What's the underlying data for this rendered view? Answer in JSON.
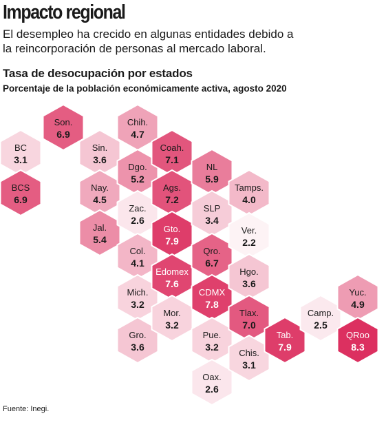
{
  "headline": "Impacto regional",
  "lede": "El desempleo ha crecido en algunas entidades debido a la reincorporación de personas al mercado laboral.",
  "source": "Fuente: Inegi.",
  "chart_data": {
    "type": "heatmap",
    "title": "Tasa de desocupación por estados",
    "subtitle": "Porcentaje de la población económicamente activa, agosto 2020",
    "colors": {
      "low": "#ffffff",
      "high": "#dc3060",
      "stroke": "#ffffff",
      "dark_text": "#1a1a1a",
      "light_text": "#ffffff"
    },
    "states": [
      {
        "label": "BC",
        "value": 3.1
      },
      {
        "label": "Son.",
        "value": 6.9
      },
      {
        "label": "BCS",
        "value": 6.9
      },
      {
        "label": "Sin.",
        "value": 3.6
      },
      {
        "label": "Chih.",
        "value": 4.7
      },
      {
        "label": "Nay.",
        "value": 4.5
      },
      {
        "label": "Dgo.",
        "value": 5.2
      },
      {
        "label": "Coah.",
        "value": 7.1
      },
      {
        "label": "Jal.",
        "value": 5.4
      },
      {
        "label": "Zac.",
        "value": 2.6
      },
      {
        "label": "Ags.",
        "value": 7.2
      },
      {
        "label": "NL",
        "value": 5.9
      },
      {
        "label": "Col.",
        "value": 4.1
      },
      {
        "label": "Gto.",
        "value": 7.9
      },
      {
        "label": "SLP",
        "value": 3.4
      },
      {
        "label": "Tamps.",
        "value": 4.0
      },
      {
        "label": "Mich.",
        "value": 3.2
      },
      {
        "label": "Edomex",
        "value": 7.6
      },
      {
        "label": "Qro.",
        "value": 6.7
      },
      {
        "label": "Ver.",
        "value": 2.2
      },
      {
        "label": "Gro.",
        "value": 3.6
      },
      {
        "label": "Mor.",
        "value": 3.2
      },
      {
        "label": "CDMX",
        "value": 7.8
      },
      {
        "label": "Hgo.",
        "value": 3.6
      },
      {
        "label": "Pue.",
        "value": 3.2
      },
      {
        "label": "Tlax.",
        "value": 7.0
      },
      {
        "label": "Oax.",
        "value": 2.6
      },
      {
        "label": "Chis.",
        "value": 3.1
      },
      {
        "label": "Tab.",
        "value": 7.9
      },
      {
        "label": "Camp.",
        "value": 2.5
      },
      {
        "label": "Yuc.",
        "value": 4.9
      },
      {
        "label": "QRoo",
        "value": 8.3
      }
    ]
  }
}
